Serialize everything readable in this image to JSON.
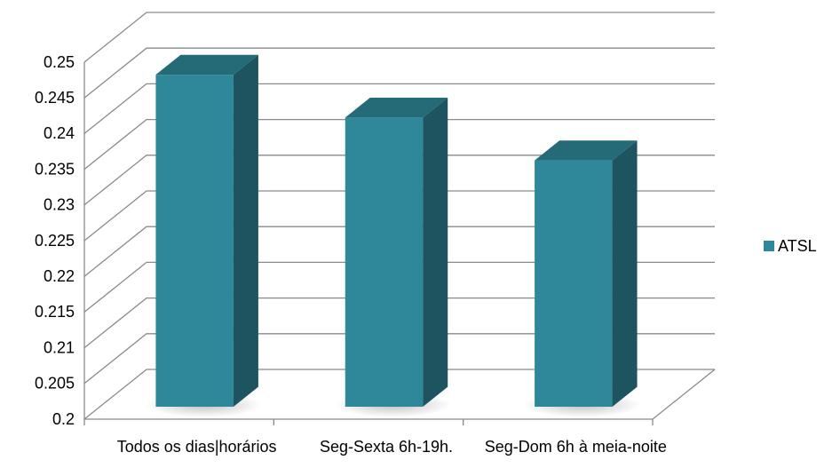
{
  "chart_data": {
    "type": "bar3d",
    "categories": [
      "Todos os dias|horários",
      "Seg-Sexta 6h-19h.",
      "Seg-Dom 6h à meia-noite"
    ],
    "series": [
      {
        "name": "ATSL",
        "color": "#2f8899",
        "values": [
          0.2465,
          0.2405,
          0.2345
        ]
      }
    ],
    "ylim": [
      0.2,
      0.25
    ],
    "yticks": [
      0.2,
      0.205,
      0.21,
      0.215,
      0.22,
      0.225,
      0.23,
      0.235,
      0.24,
      0.245,
      0.25
    ],
    "grid": true,
    "legend": "right"
  }
}
